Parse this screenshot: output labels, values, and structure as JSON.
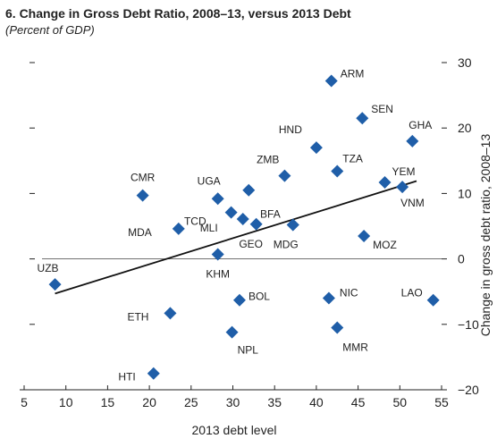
{
  "chart_data": {
    "type": "scatter",
    "title": "6. Change in Gross Debt Ratio, 2008–13, versus 2013 Debt",
    "subtitle": "(Percent of GDP)",
    "x_label": "2013 debt level",
    "y_label": "Change in gross debt ratio, 2008–13",
    "color": "#1f5ea8",
    "labels": [
      "ARM",
      "SEN",
      "GHA",
      "HND",
      "TZA",
      "ZMB",
      "YEM",
      "VNM",
      "UGA",
      null,
      "CMR",
      "TCD",
      "MLI",
      "GEO",
      "BFA",
      "MDA",
      "MDG",
      "MOZ",
      "KHM",
      "UZB",
      "ETH",
      "BOL",
      "NIC",
      "LAO",
      "MMR",
      "NPL",
      "HTI"
    ],
    "x": [
      41.8,
      45.5,
      51.5,
      40.0,
      42.5,
      36.2,
      48.2,
      50.3,
      28.2,
      31.9,
      19.2,
      29.8,
      31.2,
      32.8,
      37.2,
      23.5,
      37.2,
      45.7,
      28.2,
      8.7,
      22.5,
      30.8,
      41.5,
      54.0,
      42.5,
      29.9,
      20.5
    ],
    "values": [
      27.2,
      21.5,
      18.0,
      17.0,
      13.4,
      12.7,
      11.7,
      11.0,
      9.2,
      10.5,
      9.7,
      7.1,
      6.1,
      5.3,
      5.2,
      4.6,
      5.2,
      3.5,
      0.7,
      -3.9,
      -8.3,
      -6.3,
      -6.0,
      -6.3,
      -10.5,
      -11.2,
      -17.5
    ],
    "trend": {
      "x": [
        8.7,
        52
      ],
      "values": [
        -5.3,
        11.9
      ]
    },
    "xlim": [
      5,
      55
    ],
    "xticks": [
      5,
      10,
      15,
      20,
      25,
      30,
      35,
      40,
      45,
      50,
      55
    ],
    "ylim": [
      -20,
      30
    ],
    "yticks": [
      30,
      20,
      10,
      0,
      {
        "value": -10,
        "label": "−10"
      },
      {
        "value": -20,
        "label": "−20"
      }
    ]
  }
}
